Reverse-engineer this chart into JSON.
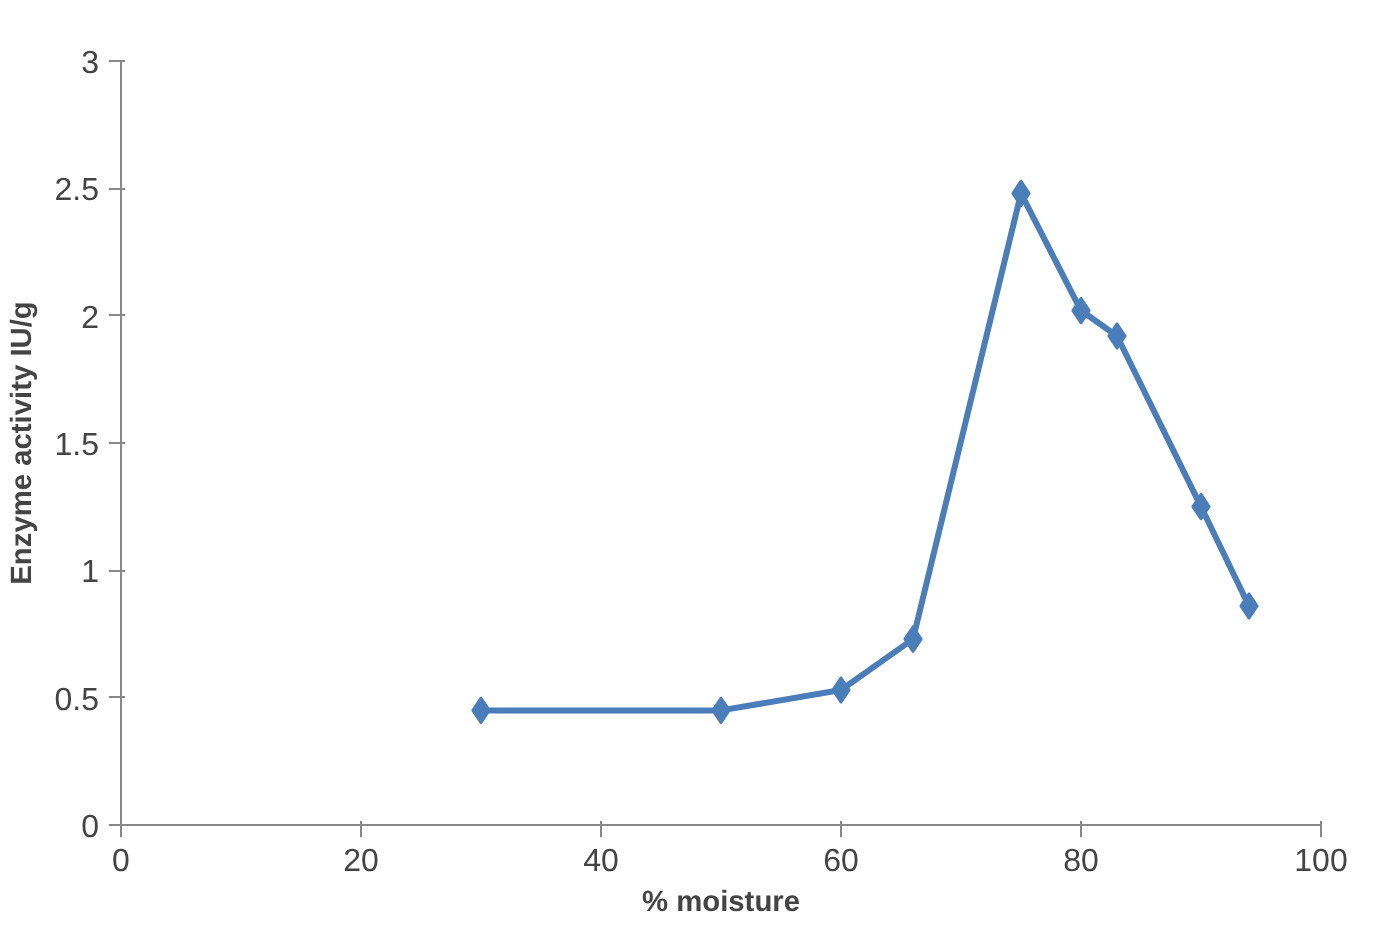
{
  "chart_data": {
    "type": "line",
    "xlabel": "% moisture",
    "ylabel": "Enzyme activity IU/g",
    "x": [
      30,
      50,
      60,
      66,
      75,
      80,
      83,
      90,
      94
    ],
    "series": [
      {
        "color": "#4a7ebb",
        "values": [
          0.45,
          0.45,
          0.53,
          0.73,
          2.48,
          2.02,
          1.92,
          1.25,
          0.86
        ]
      }
    ],
    "xlim": [
      0,
      100
    ],
    "xticks": [
      0,
      20,
      40,
      60,
      80,
      100
    ],
    "ylim": [
      0,
      3
    ],
    "yticks": [
      0,
      0.5,
      1,
      1.5,
      2,
      2.5,
      3
    ],
    "grid": false,
    "marker": "diamond",
    "line_style": "solid"
  }
}
